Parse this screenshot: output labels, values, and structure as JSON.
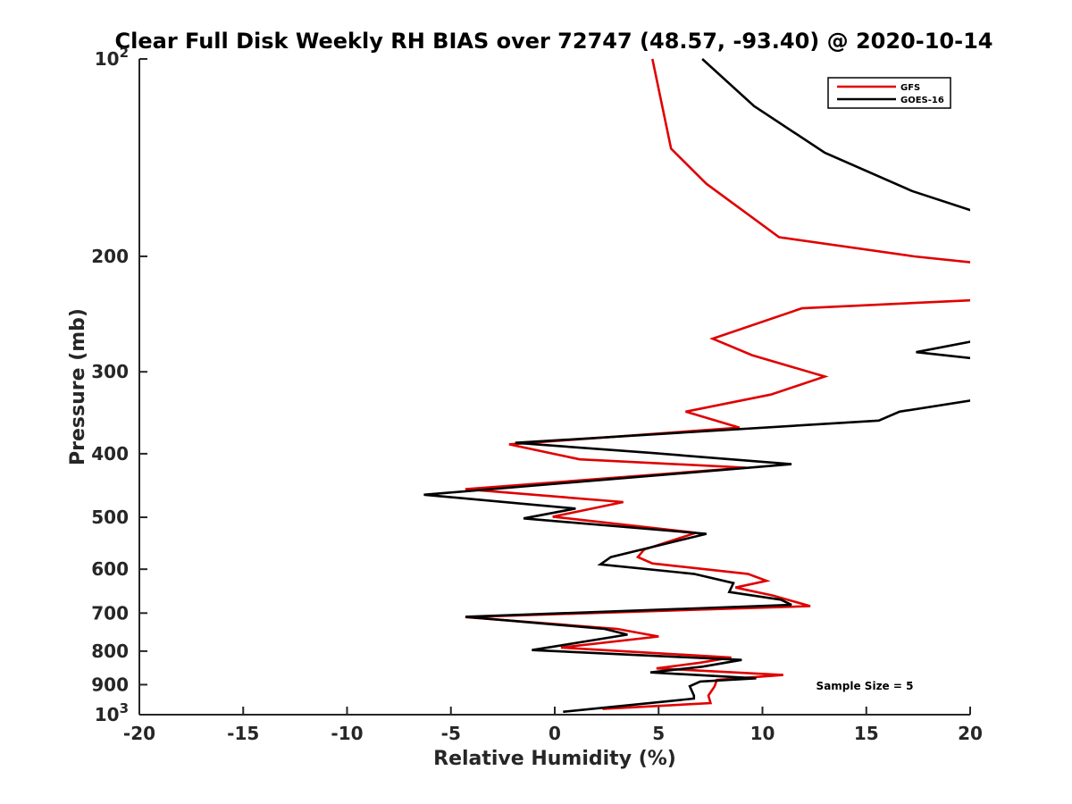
{
  "chart_data": {
    "type": "line",
    "title": "Clear Full Disk Weekly RH BIAS over 72747 (48.57, -93.40) @ 2020-10-14",
    "xlabel": "Relative Humidity (%)",
    "ylabel": "Pressure (mb)",
    "xlim": [
      -20,
      20
    ],
    "ylim": [
      100,
      1000
    ],
    "yscale": "log",
    "y_reversed": true,
    "x_ticks": [
      "-20",
      "-15",
      "-10",
      "-5",
      "0",
      "5",
      "10",
      "15",
      "20"
    ],
    "y_ticks": [
      {
        "value": 100,
        "base": "10",
        "exp": "2"
      },
      {
        "value": 200,
        "label": "200"
      },
      {
        "value": 300,
        "label": "300"
      },
      {
        "value": 400,
        "label": "400"
      },
      {
        "value": 500,
        "label": "500"
      },
      {
        "value": 600,
        "label": "600"
      },
      {
        "value": 700,
        "label": "700"
      },
      {
        "value": 800,
        "label": "800"
      },
      {
        "value": 900,
        "label": "900"
      },
      {
        "value": 1000,
        "base": "10",
        "exp": "3"
      }
    ],
    "legend_position": "top-right",
    "annotation": "Sample Size = 5",
    "series": [
      {
        "name": "GFS",
        "color": "#e00000",
        "points": [
          [
            4.7,
            100
          ],
          [
            5.6,
            137
          ],
          [
            7.3,
            155
          ],
          [
            10.8,
            187
          ],
          [
            17.3,
            200
          ],
          [
            20.5,
            205
          ],
          [
            20.5,
            233
          ],
          [
            11.9,
            240
          ],
          [
            7.6,
            267
          ],
          [
            9.5,
            283
          ],
          [
            13.0,
            305
          ],
          [
            10.4,
            325
          ],
          [
            6.3,
            345
          ],
          [
            8.9,
            365
          ],
          [
            -2.2,
            387
          ],
          [
            1.2,
            408
          ],
          [
            9.2,
            420
          ],
          [
            -4.3,
            453
          ],
          [
            3.3,
            474
          ],
          [
            -0.1,
            499
          ],
          [
            6.8,
            528
          ],
          [
            4.3,
            560
          ],
          [
            4.0,
            575
          ],
          [
            4.7,
            588
          ],
          [
            9.3,
            610
          ],
          [
            10.2,
            625
          ],
          [
            8.7,
            640
          ],
          [
            10.5,
            658
          ],
          [
            12.3,
            683
          ],
          [
            -4.3,
            710
          ],
          [
            3.0,
            740
          ],
          [
            5.0,
            760
          ],
          [
            0.3,
            790
          ],
          [
            8.5,
            818
          ],
          [
            7.0,
            833
          ],
          [
            4.9,
            850
          ],
          [
            11.0,
            870
          ],
          [
            7.8,
            885
          ],
          [
            7.7,
            905
          ],
          [
            7.4,
            935
          ],
          [
            7.5,
            960
          ],
          [
            2.3,
            980
          ]
        ]
      },
      {
        "name": "GOES-16",
        "color": "#000000",
        "points": [
          [
            7.1,
            100
          ],
          [
            9.6,
            118
          ],
          [
            13.0,
            139
          ],
          [
            17.2,
            159
          ],
          [
            20.5,
            172
          ],
          [
            20.5,
            268
          ],
          [
            17.4,
            280
          ],
          [
            20.5,
            287
          ],
          [
            20.5,
            330
          ],
          [
            16.6,
            345
          ],
          [
            15.6,
            356
          ],
          [
            -1.9,
            385
          ],
          [
            4.7,
            399
          ],
          [
            11.4,
            415
          ],
          [
            -6.3,
            462
          ],
          [
            1.0,
            485
          ],
          [
            -1.5,
            502
          ],
          [
            7.3,
            530
          ],
          [
            2.7,
            575
          ],
          [
            2.2,
            590
          ],
          [
            6.7,
            610
          ],
          [
            8.6,
            630
          ],
          [
            8.4,
            650
          ],
          [
            10.9,
            668
          ],
          [
            11.4,
            680
          ],
          [
            -4.3,
            709
          ],
          [
            2.4,
            740
          ],
          [
            3.5,
            755
          ],
          [
            -1.1,
            797
          ],
          [
            9.0,
            825
          ],
          [
            7.1,
            845
          ],
          [
            4.6,
            862
          ],
          [
            9.7,
            880
          ],
          [
            7.0,
            890
          ],
          [
            6.5,
            905
          ],
          [
            6.7,
            935
          ],
          [
            6.7,
            945
          ],
          [
            0.4,
            990
          ]
        ]
      }
    ]
  }
}
